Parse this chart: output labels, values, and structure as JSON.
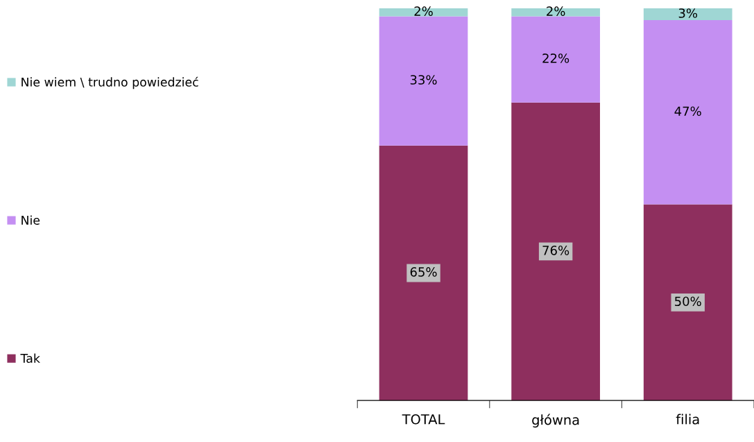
{
  "chart_data": {
    "type": "bar",
    "stacked": true,
    "tick_labels": "x",
    "categories": [
      "TOTAL",
      "główna",
      "filia"
    ],
    "series": [
      {
        "name": "Tak",
        "color": "#8e2f5e",
        "values": [
          65,
          76,
          50
        ],
        "value_labels": [
          "65%",
          "76%",
          "50%"
        ]
      },
      {
        "name": "Nie",
        "color": "#c48ff2",
        "values": [
          33,
          22,
          47
        ],
        "value_labels": [
          "33%",
          "22%",
          "47%"
        ]
      },
      {
        "name": "Nie wiem \\ trudno powiedzieć",
        "color": "#9fd6d4",
        "values": [
          2,
          2,
          3
        ],
        "value_labels": [
          "2%",
          "2%",
          "3%"
        ]
      }
    ],
    "legend": "left",
    "grid": false
  }
}
